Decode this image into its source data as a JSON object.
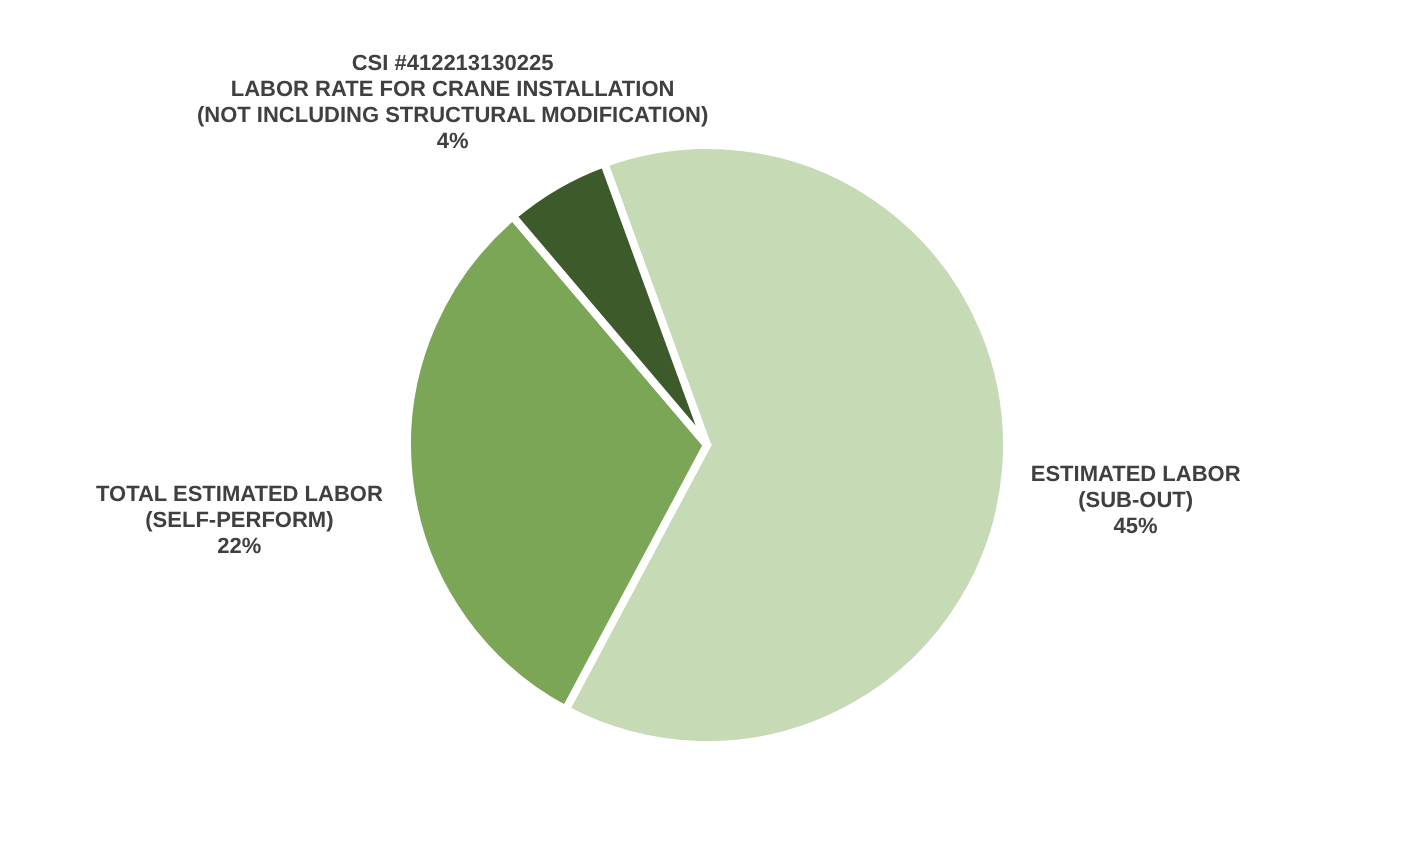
{
  "chart_data": {
    "type": "pie",
    "categories": [
      "ESTIMATED LABOR\n(SUB-OUT)",
      "TOTAL ESTIMATED LABOR\n(SELF-PERFORM)",
      "CSI #412213130225\nLABOR RATE FOR CRANE INSTALLATION\n(NOT INCLUDING STRUCTURAL MODIFICATION)"
    ],
    "values": [
      45,
      22,
      4
    ],
    "value_labels": [
      "45%",
      "22%",
      "4%"
    ],
    "colors": [
      "#c5dab5",
      "#7ba656",
      "#3d5a2a"
    ]
  }
}
